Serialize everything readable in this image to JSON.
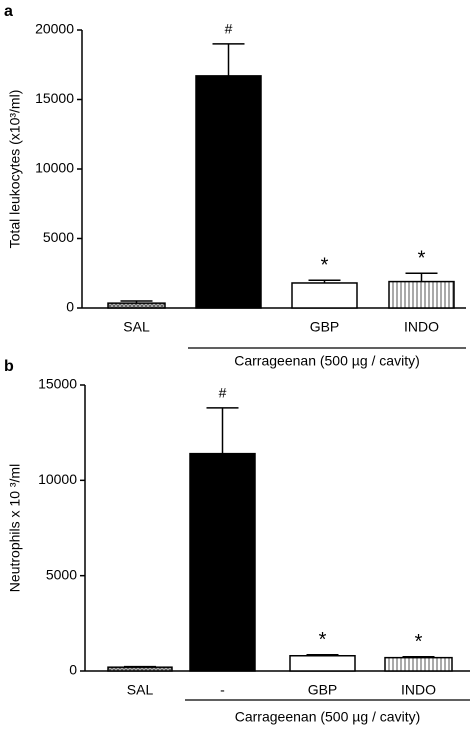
{
  "chart_data": [
    {
      "type": "bar",
      "panel": "a",
      "ylabel": "Total leukocytes (x10³/ml)",
      "categories": [
        "SAL",
        null,
        "GBP",
        "INDO"
      ],
      "values": [
        350,
        16700,
        1800,
        1900
      ],
      "errors": [
        150,
        2300,
        200,
        600
      ],
      "bar_labels": [
        null,
        "#",
        "*",
        "*"
      ],
      "colors": [
        "#9a9a9a",
        "#000000",
        "#ffffff",
        "#ffffff"
      ],
      "patterns": [
        "crosshatch",
        "solid",
        "solid",
        "vertical"
      ],
      "group_label": "Carrageenan (500 µg / cavity)",
      "ylim": [
        0,
        20000
      ],
      "yticks": [
        0,
        5000,
        10000,
        15000,
        20000
      ]
    },
    {
      "type": "bar",
      "panel": "b",
      "ylabel": "Neutrophils x 10 ³/ml",
      "categories": [
        "SAL",
        "-",
        "GBP",
        "INDO"
      ],
      "values": [
        200,
        11400,
        800,
        700
      ],
      "errors": [
        30,
        2400,
        50,
        50
      ],
      "bar_labels": [
        null,
        "#",
        "*",
        "*"
      ],
      "colors": [
        "#9a9a9a",
        "#000000",
        "#ffffff",
        "#ffffff"
      ],
      "patterns": [
        "crosshatch",
        "solid",
        "solid",
        "vertical"
      ],
      "group_label": "Carrageenan (500 µg / cavity)",
      "ylim": [
        0,
        15000
      ],
      "yticks": [
        0,
        5000,
        10000,
        15000
      ]
    }
  ]
}
